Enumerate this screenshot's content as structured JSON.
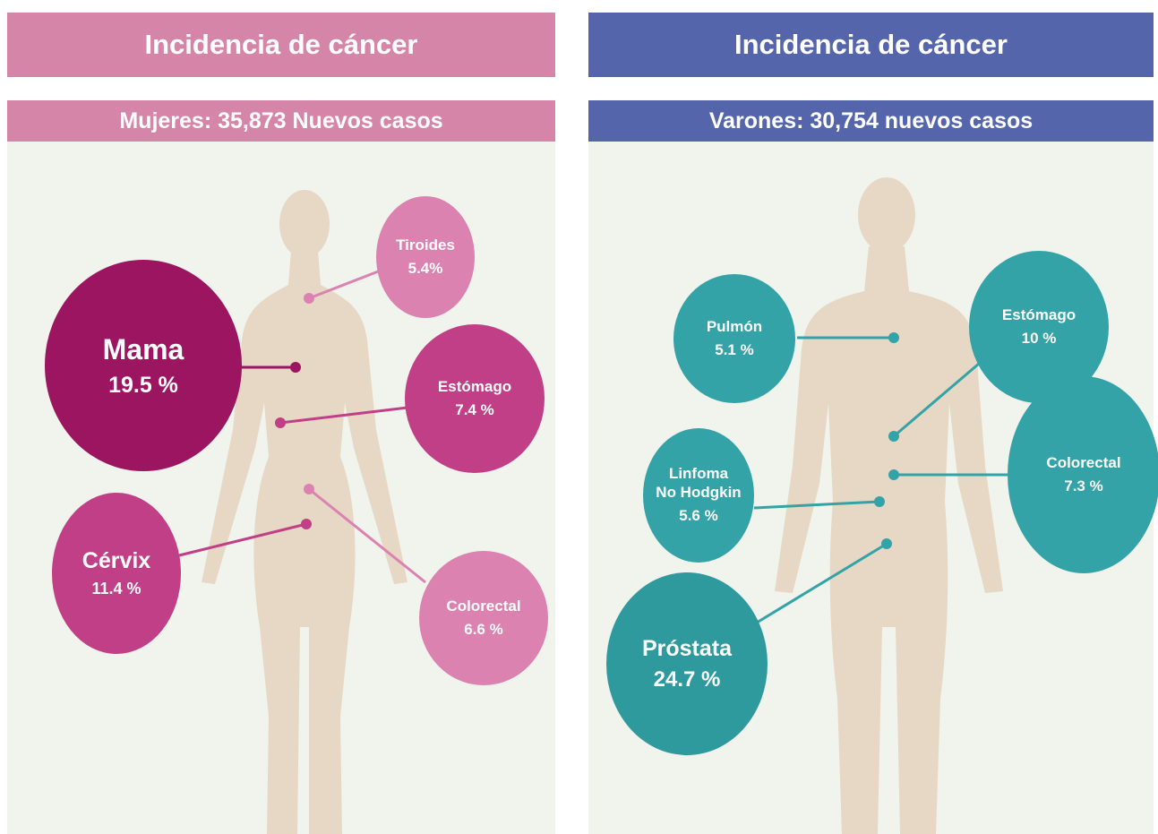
{
  "panels": [
    {
      "title": "Incidencia de cáncer",
      "subtitle": "Mujeres: 35,873 Nuevos casos",
      "organs": [
        {
          "name": "Tiroides",
          "value": "5.4%"
        },
        {
          "name": "Mama",
          "value": "19.5 %"
        },
        {
          "name": "Estómago",
          "value": "7.4 %"
        },
        {
          "name": "Cérvix",
          "value": "11.4 %"
        },
        {
          "name": "Colorectal",
          "value": "6.6 %"
        }
      ]
    },
    {
      "title": "Incidencia de cáncer",
      "subtitle": "Varones: 30,754 nuevos casos",
      "organs": [
        {
          "name": "Pulmón",
          "value": "5.1 %"
        },
        {
          "name": "Estómago",
          "value": "10 %"
        },
        {
          "name": "Linfoma\nNo Hodgkin",
          "value": "5.6 %"
        },
        {
          "name": "Colorectal",
          "value": "7.3 %"
        },
        {
          "name": "Próstata",
          "value": "24.7 %"
        }
      ]
    }
  ]
}
